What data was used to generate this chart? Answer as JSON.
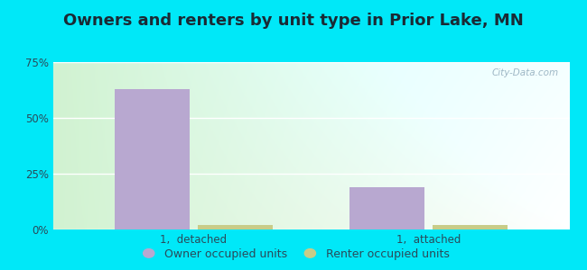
{
  "title": "Owners and renters by unit type in Prior Lake, MN",
  "categories": [
    "1,  detached",
    "1,  attached"
  ],
  "owner_values": [
    63.0,
    19.0
  ],
  "renter_values": [
    2.0,
    2.0
  ],
  "owner_color": "#b8a8d0",
  "renter_color": "#c8cc88",
  "ylim": [
    0,
    75
  ],
  "yticks": [
    0,
    25,
    50,
    75
  ],
  "yticklabels": [
    "0%",
    "25%",
    "50%",
    "75%"
  ],
  "bar_width": 0.32,
  "background_outer": "#00e8f8",
  "legend_labels": [
    "Owner occupied units",
    "Renter occupied units"
  ],
  "watermark": "City-Data.com",
  "title_fontsize": 13,
  "tick_fontsize": 8.5,
  "legend_fontsize": 9,
  "label_color": "#2a4a5a",
  "grid_color": "#ffffff"
}
